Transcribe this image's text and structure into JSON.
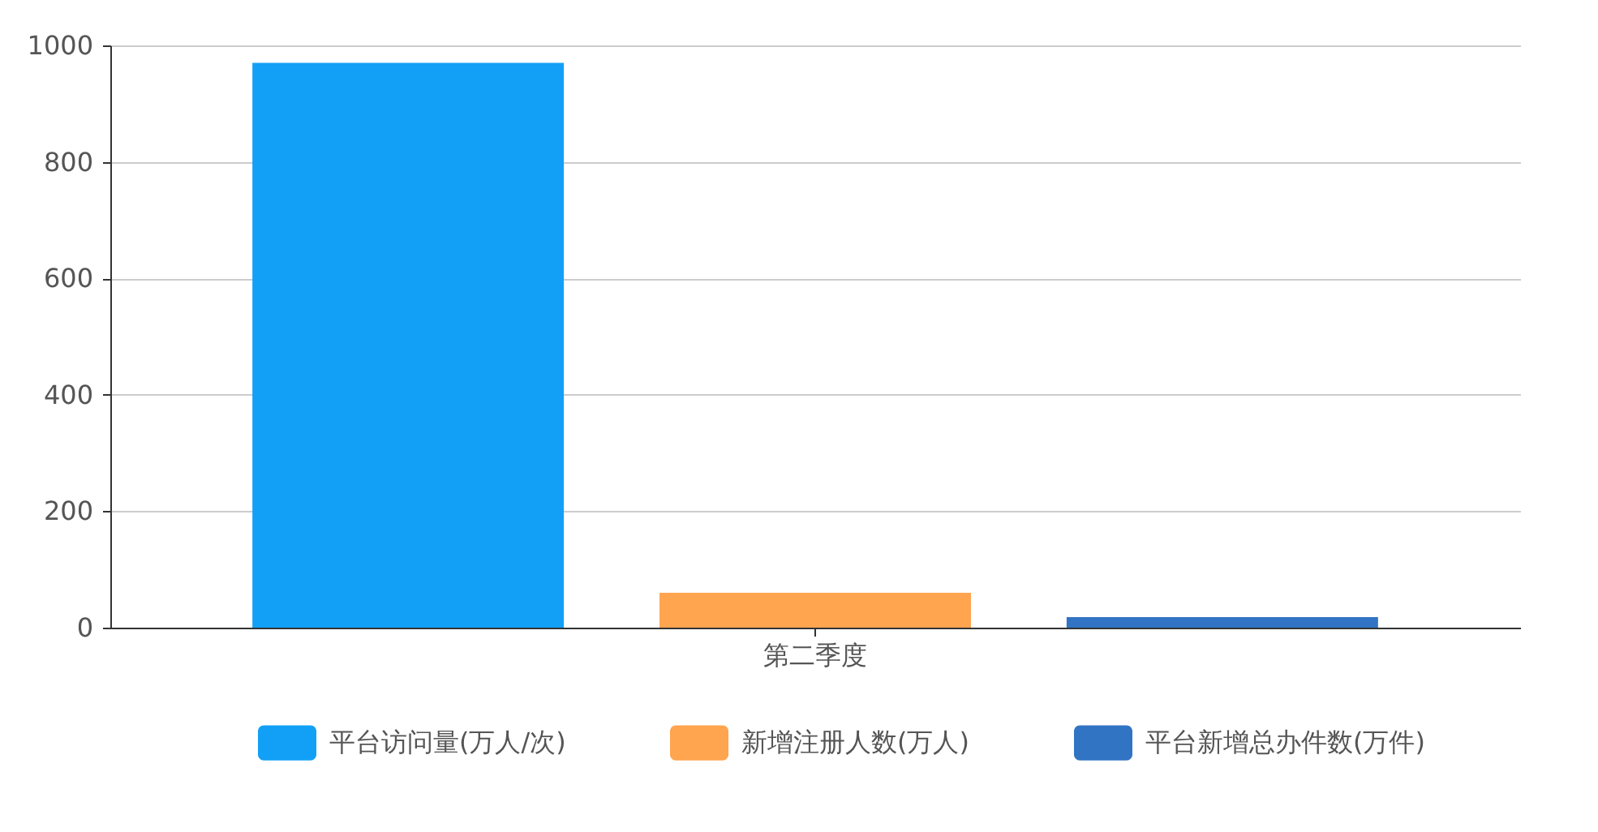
{
  "chart_data": {
    "type": "bar",
    "categories": [
      "第二季度"
    ],
    "series": [
      {
        "name": "平台访问量(万人/次)",
        "color": "#12a0f7",
        "values": [
          970
        ]
      },
      {
        "name": "新增注册人数(万人)",
        "color": "#ffa44f",
        "values": [
          60
        ]
      },
      {
        "name": "平台新增总办件数(万件)",
        "color": "#3174c4",
        "values": [
          18
        ]
      }
    ],
    "ylim": [
      0,
      1000
    ],
    "yticks": [
      0,
      200,
      400,
      600,
      800,
      1000
    ],
    "grid": "y",
    "legend": "bottom"
  }
}
